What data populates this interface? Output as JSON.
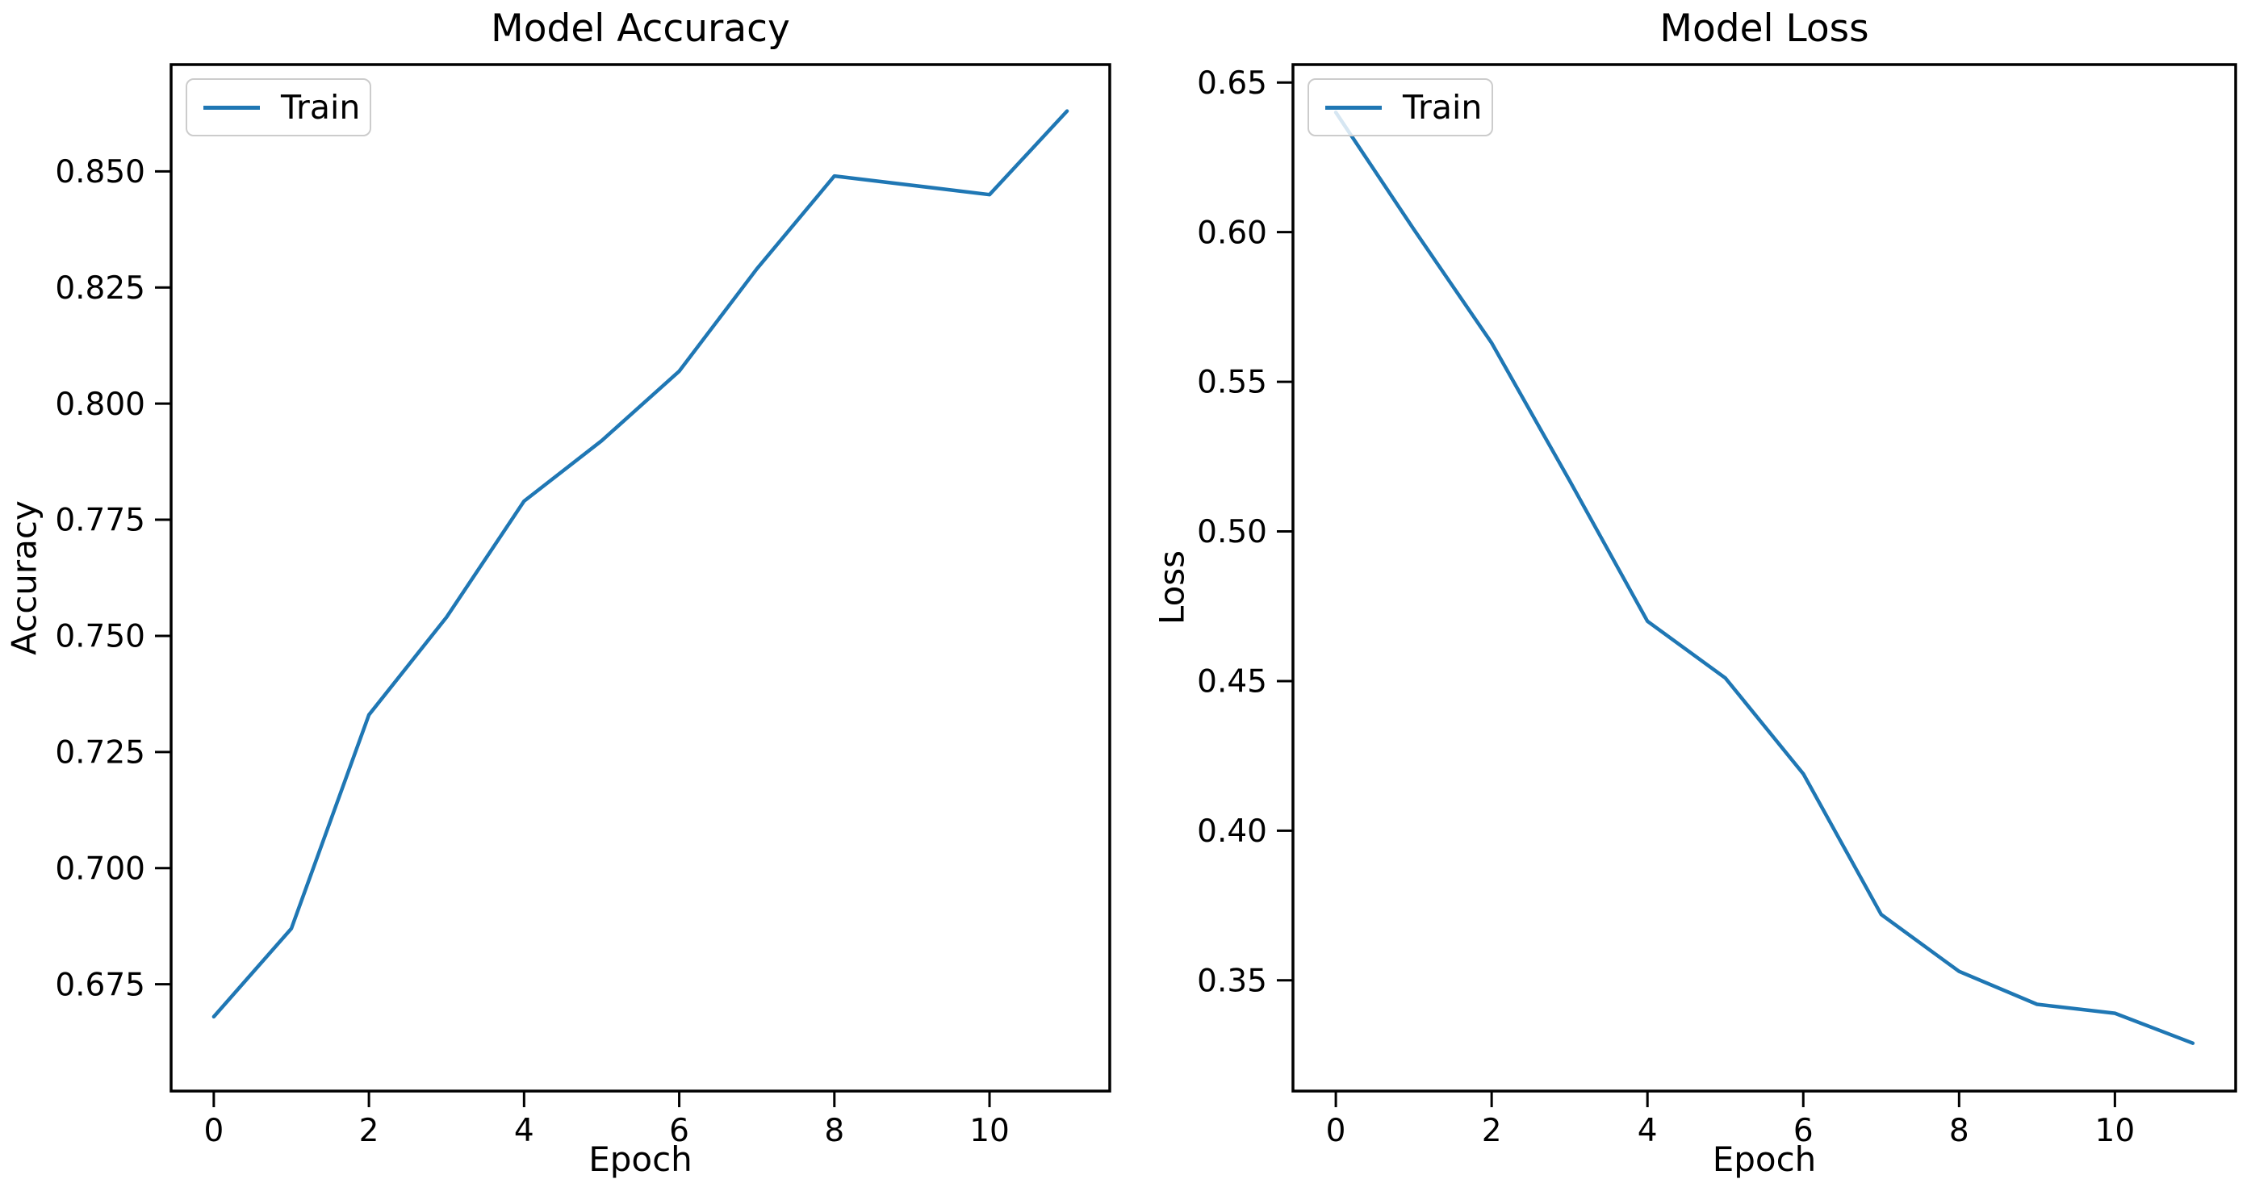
{
  "figure": {
    "background": "#ffffff",
    "axis_color": "#000000",
    "text_color": "#000000"
  },
  "chart_data": [
    {
      "type": "line",
      "title": "Model Accuracy",
      "xlabel": "Epoch",
      "ylabel": "Accuracy",
      "x": [
        0,
        1,
        2,
        3,
        4,
        5,
        6,
        7,
        8,
        9,
        10,
        11
      ],
      "series": [
        {
          "name": "Train",
          "values": [
            0.668,
            0.687,
            0.733,
            0.754,
            0.779,
            0.792,
            0.807,
            0.829,
            0.849,
            0.847,
            0.845,
            0.863
          ]
        }
      ],
      "line_color": "#1f77b4",
      "xlim": [
        -0.55,
        11.55
      ],
      "ylim": [
        0.652,
        0.873
      ],
      "xtick_values": [
        0,
        2,
        4,
        6,
        8,
        10
      ],
      "xtick_labels": [
        "0",
        "2",
        "4",
        "6",
        "8",
        "10"
      ],
      "ytick_values": [
        0.675,
        0.7,
        0.725,
        0.75,
        0.775,
        0.8,
        0.825,
        0.85
      ],
      "ytick_labels": [
        "0.675",
        "0.700",
        "0.725",
        "0.750",
        "0.775",
        "0.800",
        "0.825",
        "0.850"
      ],
      "legend": {
        "labels": [
          "Train"
        ],
        "position": "upper left"
      },
      "grid": false
    },
    {
      "type": "line",
      "title": "Model Loss",
      "xlabel": "Epoch",
      "ylabel": "Loss",
      "x": [
        0,
        1,
        2,
        3,
        4,
        5,
        6,
        7,
        8,
        9,
        10,
        11
      ],
      "series": [
        {
          "name": "Train",
          "values": [
            0.64,
            0.601,
            0.563,
            0.517,
            0.47,
            0.451,
            0.419,
            0.372,
            0.353,
            0.342,
            0.339,
            0.329
          ]
        }
      ],
      "line_color": "#1f77b4",
      "xlim": [
        -0.55,
        11.55
      ],
      "ylim": [
        0.313,
        0.656
      ],
      "xtick_values": [
        0,
        2,
        4,
        6,
        8,
        10
      ],
      "xtick_labels": [
        "0",
        "2",
        "4",
        "6",
        "8",
        "10"
      ],
      "ytick_values": [
        0.35,
        0.4,
        0.45,
        0.5,
        0.55,
        0.6,
        0.65
      ],
      "ytick_labels": [
        "0.35",
        "0.40",
        "0.45",
        "0.50",
        "0.55",
        "0.60",
        "0.65"
      ],
      "legend": {
        "labels": [
          "Train"
        ],
        "position": "upper left"
      },
      "grid": false
    }
  ]
}
